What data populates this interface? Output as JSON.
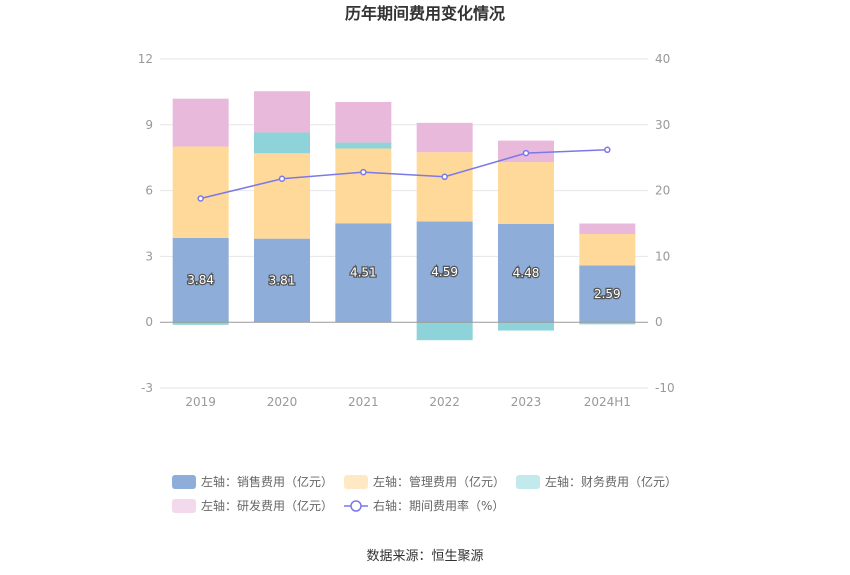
{
  "chart_data": {
    "type": "bar",
    "title": "历年期间费用变化情况",
    "categories": [
      "2019",
      "2020",
      "2021",
      "2022",
      "2023",
      "2024H1"
    ],
    "left_axis": {
      "ylim": [
        -3,
        12
      ],
      "ticks": [
        "-3",
        "0",
        "3",
        "6",
        "9",
        "12"
      ]
    },
    "right_axis": {
      "ylim": [
        -10,
        40
      ],
      "ticks": [
        "-10",
        "0",
        "10",
        "20",
        "30",
        "40"
      ]
    },
    "series": [
      {
        "name": "左轴：销售费用（亿元）",
        "kind": "stacked-bar",
        "axis": "left",
        "color": "#8eadd9",
        "values": [
          3.84,
          3.81,
          4.51,
          4.59,
          4.48,
          2.59
        ],
        "labels": [
          "3.84",
          "3.81",
          "4.51",
          "4.59",
          "4.48",
          "2.59"
        ]
      },
      {
        "name": "左轴：管理费用（亿元）",
        "kind": "stacked-bar",
        "axis": "left",
        "color": "#ffd999",
        "values": [
          4.17,
          3.89,
          3.41,
          3.16,
          2.82,
          1.43
        ]
      },
      {
        "name": "左轴：财务费用（亿元）",
        "kind": "stacked-bar",
        "axis": "left",
        "color": "#8dd3d9",
        "values": [
          -0.12,
          0.95,
          0.27,
          -0.82,
          -0.38,
          -0.1
        ]
      },
      {
        "name": "左轴：研发费用（亿元）",
        "kind": "stacked-bar",
        "axis": "left",
        "color": "#e8b9db",
        "values": [
          2.18,
          1.88,
          1.85,
          1.34,
          0.98,
          0.48
        ]
      },
      {
        "name": "右轴：期间费用率（%）",
        "kind": "line",
        "axis": "right",
        "color": "#7b79e8",
        "values": [
          18.8,
          21.8,
          22.8,
          22.1,
          25.7,
          26.2
        ]
      }
    ],
    "grid": true,
    "legend_position": "bottom",
    "source": "数据来源：恒生聚源"
  }
}
